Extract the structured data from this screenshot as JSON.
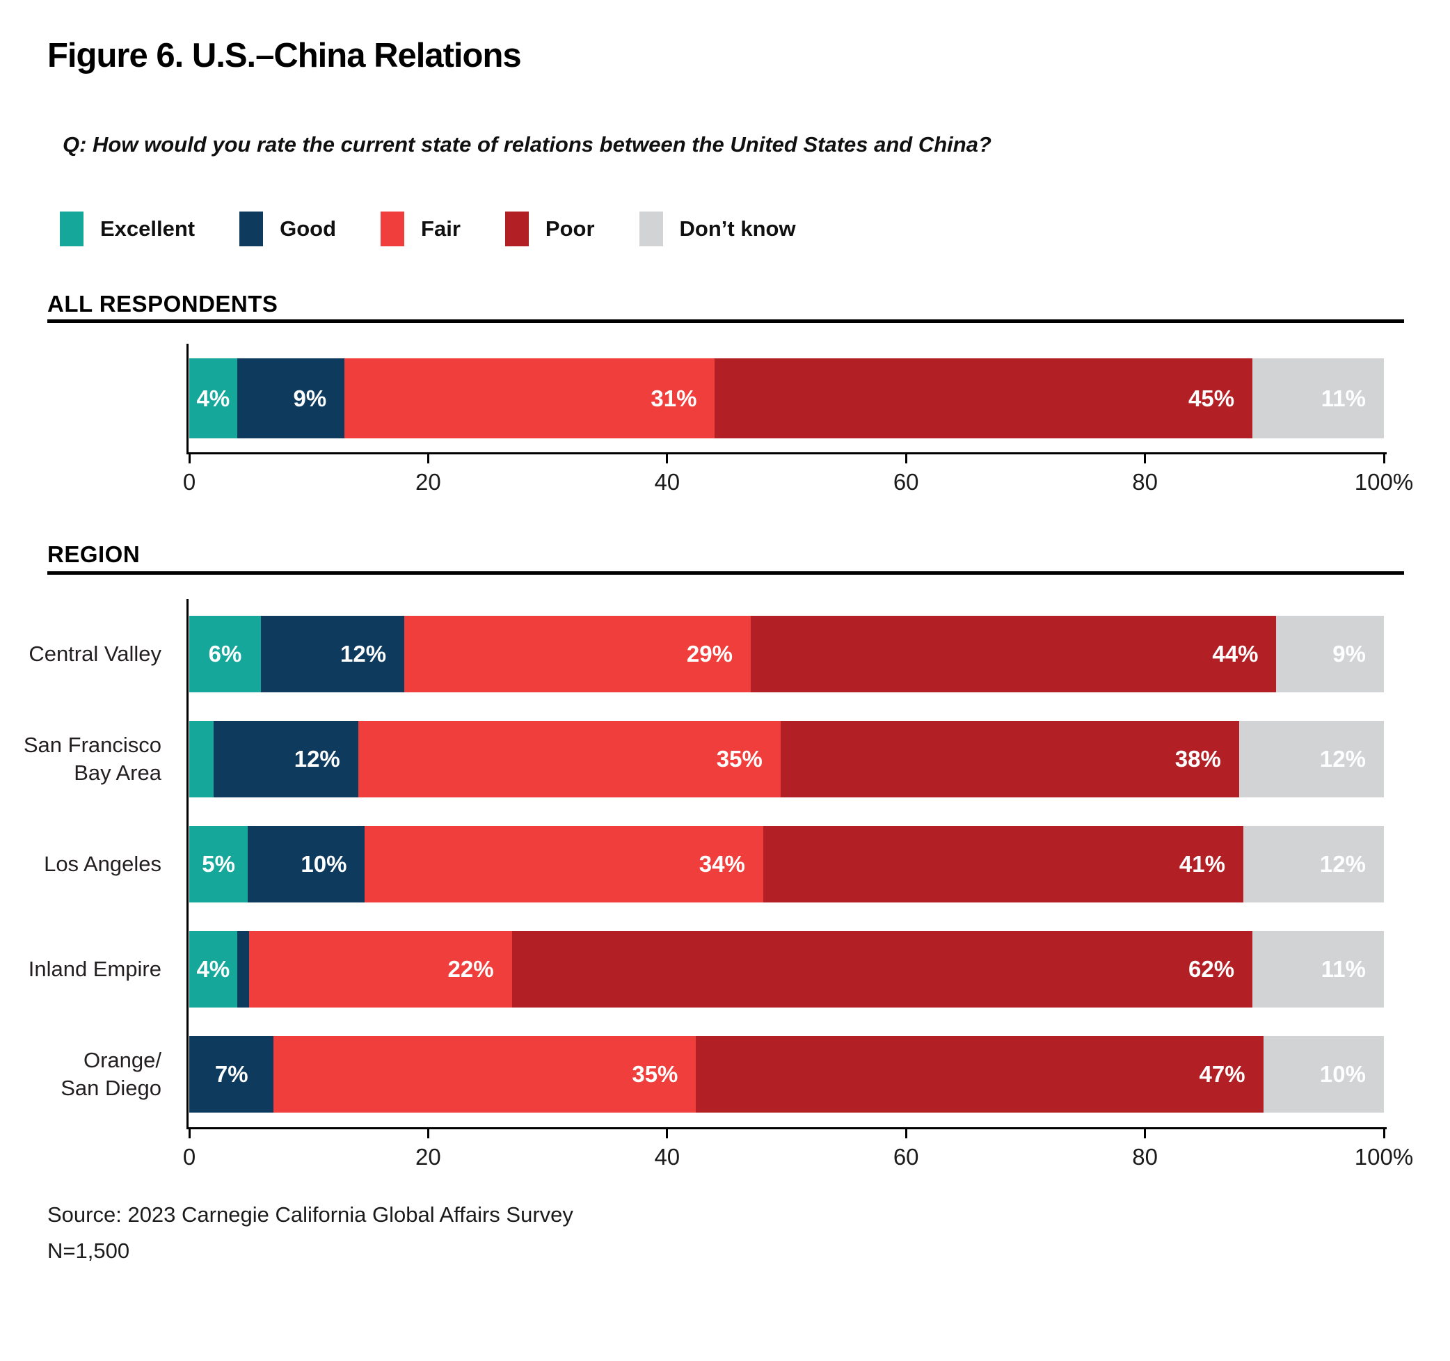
{
  "title": "Figure 6. U.S.–China Relations",
  "question": "Q: How would you rate the current state of relations between the United States and China?",
  "source_line1": "Source: 2023 Carnegie California Global Affairs Survey",
  "source_line2": "N=1,500",
  "chart_data": {
    "type": "bar",
    "orientation": "horizontal-stacked",
    "xlim": [
      0,
      100
    ],
    "grid": false,
    "legend_position": "top-left",
    "series": [
      "Excellent",
      "Good",
      "Fair",
      "Poor",
      "Don’t know"
    ],
    "colors": [
      "#16A79B",
      "#0E3A5E",
      "#EF3E3B",
      "#B22026",
      "#D1D3D4"
    ],
    "axis_ticks": [
      "0",
      "20",
      "40",
      "60",
      "80",
      "100%"
    ],
    "groups": [
      {
        "heading": "ALL RESPONDENTS",
        "rows": [
          {
            "label": "",
            "values": [
              4,
              9,
              31,
              45,
              11
            ],
            "value_labels": [
              "4%",
              "9%",
              "31%",
              "45%",
              "11%"
            ]
          }
        ]
      },
      {
        "heading": "REGION",
        "rows": [
          {
            "label": "Central Valley",
            "values": [
              6,
              12,
              29,
              44,
              9
            ],
            "value_labels": [
              "6%",
              "12%",
              "29%",
              "44%",
              "9%"
            ]
          },
          {
            "label": "San Francisco\nBay Area",
            "values": [
              2,
              12,
              35,
              38,
              12
            ],
            "value_labels": [
              "",
              "12%",
              "35%",
              "38%",
              "12%"
            ]
          },
          {
            "label": "Los Angeles",
            "values": [
              5,
              10,
              34,
              41,
              12
            ],
            "value_labels": [
              "5%",
              "10%",
              "34%",
              "41%",
              "12%"
            ]
          },
          {
            "label": "Inland Empire",
            "values": [
              4,
              1,
              22,
              62,
              11
            ],
            "value_labels": [
              "4%",
              "",
              "22%",
              "62%",
              "11%"
            ]
          },
          {
            "label": "Orange/\nSan Diego",
            "values": [
              0,
              7,
              35,
              47,
              10
            ],
            "value_labels": [
              "",
              "7%",
              "35%",
              "47%",
              "10%"
            ]
          }
        ]
      }
    ]
  }
}
